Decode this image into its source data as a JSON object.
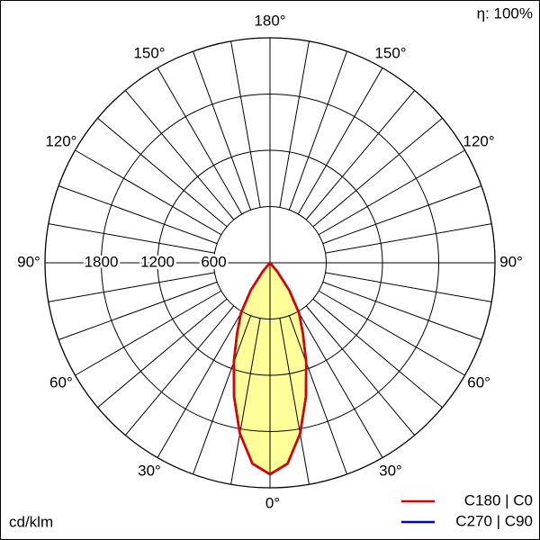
{
  "chart_data": {
    "type": "polar",
    "efficiency_label": "η: 100%",
    "unit_label": "cd/klm",
    "rlim": [
      0,
      2400
    ],
    "rticks": [
      600,
      1200,
      1800
    ],
    "angle_ticks": [
      {
        "value": 0,
        "label": "0°"
      },
      {
        "value": 30,
        "label": "30°"
      },
      {
        "value": 60,
        "label": "60°"
      },
      {
        "value": 90,
        "label": "90°"
      },
      {
        "value": 120,
        "label": "120°"
      },
      {
        "value": 150,
        "label": "150°"
      },
      {
        "value": 180,
        "label": "180°"
      }
    ],
    "fill_color": "#ffff99",
    "angles": [
      0,
      5,
      10,
      15,
      20,
      25,
      30,
      35,
      40,
      45
    ],
    "series": [
      {
        "name": "C270 | C90",
        "color": "#0000cc",
        "values": [
          2256,
          2150,
          1850,
          1480,
          1130,
          830,
          620,
          360,
          120,
          0
        ]
      },
      {
        "name": "C180 | C0",
        "color": "#e00000",
        "values": [
          2256,
          2150,
          1850,
          1480,
          1130,
          830,
          620,
          360,
          120,
          0
        ]
      }
    ]
  }
}
